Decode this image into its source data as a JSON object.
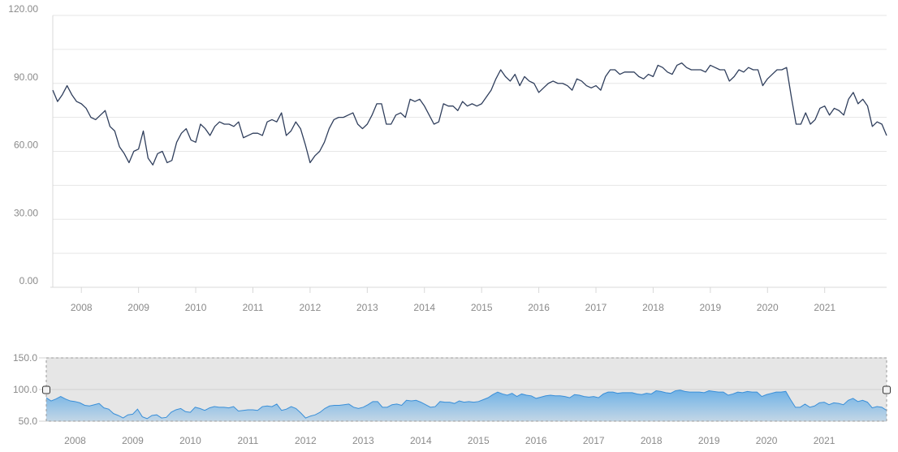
{
  "chart_data": {
    "type": "line",
    "title": "",
    "xlabel": "",
    "ylabel": "",
    "ylim": [
      0,
      120
    ],
    "grid": true,
    "y_ticks": [
      "0.00",
      "30.00",
      "60.00",
      "90.00",
      "120.00"
    ],
    "x_ticks": [
      "2008",
      "2009",
      "2010",
      "2011",
      "2012",
      "2013",
      "2014",
      "2015",
      "2016",
      "2017",
      "2018",
      "2019",
      "2020",
      "2021"
    ],
    "x_range": [
      "2007-07",
      "2021-12"
    ],
    "series": [
      {
        "color": "#2f3e5c",
        "points": [
          [
            "2007-07",
            87
          ],
          [
            "2007-08",
            82
          ],
          [
            "2007-09",
            85
          ],
          [
            "2007-10",
            89
          ],
          [
            "2007-11",
            85
          ],
          [
            "2007-12",
            82
          ],
          [
            "2008-01",
            81
          ],
          [
            "2008-02",
            79
          ],
          [
            "2008-03",
            75
          ],
          [
            "2008-04",
            74
          ],
          [
            "2008-05",
            76
          ],
          [
            "2008-06",
            78
          ],
          [
            "2008-07",
            71
          ],
          [
            "2008-08",
            69
          ],
          [
            "2008-09",
            62
          ],
          [
            "2008-10",
            59
          ],
          [
            "2008-11",
            55
          ],
          [
            "2008-12",
            60
          ],
          [
            "2009-01",
            61
          ],
          [
            "2009-02",
            69
          ],
          [
            "2009-03",
            57
          ],
          [
            "2009-04",
            54
          ],
          [
            "2009-05",
            59
          ],
          [
            "2009-06",
            60
          ],
          [
            "2009-07",
            55
          ],
          [
            "2009-08",
            56
          ],
          [
            "2009-09",
            64
          ],
          [
            "2009-10",
            68
          ],
          [
            "2009-11",
            70
          ],
          [
            "2009-12",
            65
          ],
          [
            "2010-01",
            64
          ],
          [
            "2010-02",
            72
          ],
          [
            "2010-03",
            70
          ],
          [
            "2010-04",
            67
          ],
          [
            "2010-05",
            71
          ],
          [
            "2010-06",
            73
          ],
          [
            "2010-07",
            72
          ],
          [
            "2010-08",
            72
          ],
          [
            "2010-09",
            71
          ],
          [
            "2010-10",
            73
          ],
          [
            "2010-11",
            66
          ],
          [
            "2010-12",
            67
          ],
          [
            "2011-01",
            68
          ],
          [
            "2011-02",
            68
          ],
          [
            "2011-03",
            67
          ],
          [
            "2011-04",
            73
          ],
          [
            "2011-05",
            74
          ],
          [
            "2011-06",
            73
          ],
          [
            "2011-07",
            77
          ],
          [
            "2011-08",
            67
          ],
          [
            "2011-09",
            69
          ],
          [
            "2011-10",
            73
          ],
          [
            "2011-11",
            70
          ],
          [
            "2011-12",
            63
          ],
          [
            "2012-01",
            55
          ],
          [
            "2012-02",
            58
          ],
          [
            "2012-03",
            60
          ],
          [
            "2012-04",
            64
          ],
          [
            "2012-05",
            70
          ],
          [
            "2012-06",
            74
          ],
          [
            "2012-07",
            75
          ],
          [
            "2012-08",
            75
          ],
          [
            "2012-09",
            76
          ],
          [
            "2012-10",
            77
          ],
          [
            "2012-11",
            72
          ],
          [
            "2012-12",
            70
          ],
          [
            "2013-01",
            72
          ],
          [
            "2013-02",
            76
          ],
          [
            "2013-03",
            81
          ],
          [
            "2013-04",
            81
          ],
          [
            "2013-05",
            72
          ],
          [
            "2013-06",
            72
          ],
          [
            "2013-07",
            76
          ],
          [
            "2013-08",
            77
          ],
          [
            "2013-09",
            75
          ],
          [
            "2013-10",
            83
          ],
          [
            "2013-11",
            82
          ],
          [
            "2013-12",
            83
          ],
          [
            "2014-01",
            80
          ],
          [
            "2014-02",
            76
          ],
          [
            "2014-03",
            72
          ],
          [
            "2014-04",
            73
          ],
          [
            "2014-05",
            81
          ],
          [
            "2014-06",
            80
          ],
          [
            "2014-07",
            80
          ],
          [
            "2014-08",
            78
          ],
          [
            "2014-09",
            82
          ],
          [
            "2014-10",
            80
          ],
          [
            "2014-11",
            81
          ],
          [
            "2014-12",
            80
          ],
          [
            "2015-01",
            81
          ],
          [
            "2015-02",
            84
          ],
          [
            "2015-03",
            87
          ],
          [
            "2015-04",
            92
          ],
          [
            "2015-05",
            96
          ],
          [
            "2015-06",
            93
          ],
          [
            "2015-07",
            91
          ],
          [
            "2015-08",
            94
          ],
          [
            "2015-09",
            89
          ],
          [
            "2015-10",
            93
          ],
          [
            "2015-11",
            91
          ],
          [
            "2015-12",
            90
          ],
          [
            "2016-01",
            86
          ],
          [
            "2016-02",
            88
          ],
          [
            "2016-03",
            90
          ],
          [
            "2016-04",
            91
          ],
          [
            "2016-05",
            90
          ],
          [
            "2016-06",
            90
          ],
          [
            "2016-07",
            89
          ],
          [
            "2016-08",
            87
          ],
          [
            "2016-09",
            92
          ],
          [
            "2016-10",
            91
          ],
          [
            "2016-11",
            89
          ],
          [
            "2016-12",
            88
          ],
          [
            "2017-01",
            89
          ],
          [
            "2017-02",
            87
          ],
          [
            "2017-03",
            93
          ],
          [
            "2017-04",
            96
          ],
          [
            "2017-05",
            96
          ],
          [
            "2017-06",
            94
          ],
          [
            "2017-07",
            95
          ],
          [
            "2017-08",
            95
          ],
          [
            "2017-09",
            95
          ],
          [
            "2017-10",
            93
          ],
          [
            "2017-11",
            92
          ],
          [
            "2017-12",
            94
          ],
          [
            "2018-01",
            93
          ],
          [
            "2018-02",
            98
          ],
          [
            "2018-03",
            97
          ],
          [
            "2018-04",
            95
          ],
          [
            "2018-05",
            94
          ],
          [
            "2018-06",
            98
          ],
          [
            "2018-07",
            99
          ],
          [
            "2018-08",
            97
          ],
          [
            "2018-09",
            96
          ],
          [
            "2018-10",
            96
          ],
          [
            "2018-11",
            96
          ],
          [
            "2018-12",
            95
          ],
          [
            "2019-01",
            98
          ],
          [
            "2019-02",
            97
          ],
          [
            "2019-03",
            96
          ],
          [
            "2019-04",
            96
          ],
          [
            "2019-05",
            91
          ],
          [
            "2019-06",
            93
          ],
          [
            "2019-07",
            96
          ],
          [
            "2019-08",
            95
          ],
          [
            "2019-09",
            97
          ],
          [
            "2019-10",
            96
          ],
          [
            "2019-11",
            96
          ],
          [
            "2019-12",
            89
          ],
          [
            "2020-01",
            92
          ],
          [
            "2020-02",
            94
          ],
          [
            "2020-03",
            96
          ],
          [
            "2020-04",
            96
          ],
          [
            "2020-05",
            97
          ],
          [
            "2020-06",
            84
          ],
          [
            "2020-07",
            72
          ],
          [
            "2020-08",
            72
          ],
          [
            "2020-09",
            77
          ],
          [
            "2020-10",
            72
          ],
          [
            "2020-11",
            74
          ],
          [
            "2020-12",
            79
          ],
          [
            "2021-01",
            80
          ],
          [
            "2021-02",
            76
          ],
          [
            "2021-03",
            79
          ],
          [
            "2021-04",
            78
          ],
          [
            "2021-05",
            76
          ],
          [
            "2021-06",
            83
          ],
          [
            "2021-07",
            86
          ],
          [
            "2021-08",
            81
          ],
          [
            "2021-09",
            83
          ],
          [
            "2021-10",
            80
          ],
          [
            "2021-11",
            71
          ],
          [
            "2021-12",
            73
          ],
          [
            "2022-01",
            72
          ],
          [
            "2022-02",
            67
          ]
        ]
      }
    ],
    "navigator": {
      "ylim": [
        50,
        150
      ],
      "y_ticks": [
        "50.0",
        "100.0",
        "150.0"
      ],
      "x_ticks": [
        "2008",
        "2009",
        "2010",
        "2011",
        "2012",
        "2013",
        "2014",
        "2015",
        "2016",
        "2017",
        "2018",
        "2019",
        "2020",
        "2021"
      ],
      "fill_color": "#5aa8e6",
      "line_color": "#3a8fd8",
      "mask_color": "#e6e6e6"
    }
  }
}
